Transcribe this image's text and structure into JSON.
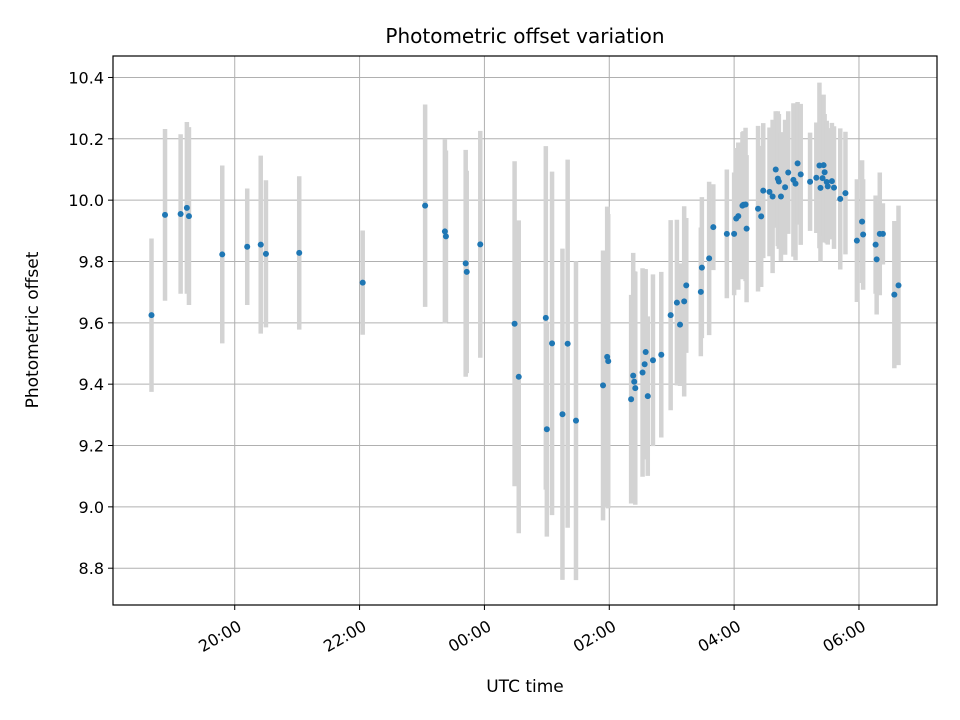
{
  "chart_data": {
    "type": "scatter",
    "title": "Photometric offset variation",
    "xlabel": "UTC time",
    "ylabel": "Photometric offset",
    "x_ticks": [
      "20:00",
      "22:00",
      "00:00",
      "02:00",
      "04:00",
      "06:00"
    ],
    "y_ticks": [
      "8.8",
      "9.0",
      "9.2",
      "9.4",
      "9.6",
      "9.8",
      "10.0",
      "10.2",
      "10.4"
    ],
    "x_range": [
      "18:03",
      "07:15"
    ],
    "ylim": [
      8.68,
      10.47
    ],
    "grid": true,
    "legend": "none",
    "marker_color": "#1f77b4",
    "errorbar_color": "#d3d3d3",
    "series": [
      {
        "x": [
          "18:40",
          "18:53",
          "19:08",
          "19:14",
          "19:16",
          "19:48",
          "20:12",
          "20:25",
          "20:30",
          "21:02",
          "22:03",
          "23:03",
          "23:22",
          "23:23",
          "23:42",
          "23:43",
          "23:56",
          "00:29",
          "00:33",
          "00:59",
          "01:00",
          "01:05",
          "01:15",
          "01:20",
          "01:28",
          "01:54",
          "01:58",
          "01:59",
          "02:21",
          "02:23",
          "02:24",
          "02:25",
          "02:32",
          "02:34",
          "02:35",
          "02:37",
          "02:42",
          "02:50",
          "02:59",
          "03:05",
          "03:08",
          "03:12",
          "03:14",
          "03:28",
          "03:29",
          "03:36",
          "03:40",
          "03:53",
          "04:00",
          "04:02",
          "04:04",
          "04:08",
          "04:09",
          "04:11",
          "04:12",
          "04:23",
          "04:26",
          "04:28",
          "04:34",
          "04:37",
          "04:40",
          "04:42",
          "04:43",
          "04:45",
          "04:49",
          "04:52",
          "04:57",
          "04:59",
          "05:01",
          "05:04",
          "05:13",
          "05:19",
          "05:22",
          "05:23",
          "05:25",
          "05:26",
          "05:27",
          "05:29",
          "05:30",
          "05:34",
          "05:36",
          "05:42",
          "05:47",
          "05:58",
          "06:03",
          "06:04",
          "06:16",
          "06:17",
          "06:20",
          "06:23",
          "06:34",
          "06:38"
        ],
        "y": [
          9.625,
          9.952,
          9.955,
          9.975,
          9.948,
          9.823,
          9.848,
          9.855,
          9.825,
          9.828,
          9.731,
          9.982,
          9.898,
          9.882,
          9.794,
          9.766,
          9.856,
          9.597,
          9.424,
          9.616,
          9.253,
          9.533,
          9.302,
          9.532,
          9.281,
          9.396,
          9.489,
          9.475,
          9.351,
          9.428,
          9.408,
          9.387,
          9.438,
          9.465,
          9.505,
          9.361,
          9.478,
          9.496,
          9.625,
          9.666,
          9.594,
          9.67,
          9.722,
          9.701,
          9.78,
          9.81,
          9.912,
          9.89,
          9.89,
          9.94,
          9.948,
          9.982,
          9.985,
          9.986,
          9.907,
          9.972,
          9.947,
          10.031,
          10.027,
          10.012,
          10.1,
          10.07,
          10.061,
          10.012,
          10.042,
          10.09,
          10.066,
          10.054,
          10.12,
          10.084,
          10.06,
          10.073,
          10.113,
          10.04,
          10.072,
          10.114,
          10.091,
          10.059,
          10.045,
          10.062,
          10.041,
          10.004,
          10.023,
          9.868,
          9.93,
          9.888,
          9.855,
          9.807,
          9.89,
          9.89,
          9.692,
          9.722
        ],
        "yerr": [
          0.25,
          0.28,
          0.26,
          0.28,
          0.29,
          0.29,
          0.19,
          0.29,
          0.24,
          0.25,
          0.17,
          0.33,
          0.3,
          0.28,
          0.37,
          0.33,
          0.37,
          0.53,
          0.51,
          0.56,
          0.35,
          0.56,
          0.54,
          0.6,
          0.52,
          0.44,
          0.49,
          0.48,
          0.34,
          0.4,
          0.36,
          0.38,
          0.34,
          0.31,
          0.27,
          0.26,
          0.28,
          0.27,
          0.31,
          0.27,
          0.2,
          0.31,
          0.22,
          0.21,
          0.23,
          0.25,
          0.14,
          0.21,
          0.2,
          0.23,
          0.24,
          0.24,
          0.24,
          0.25,
          0.24,
          0.27,
          0.23,
          0.22,
          0.21,
          0.25,
          0.19,
          0.22,
          0.22,
          0.21,
          0.22,
          0.2,
          0.25,
          0.25,
          0.2,
          0.23,
          0.16,
          0.18,
          0.27,
          0.24,
          0.21,
          0.23,
          0.19,
          0.2,
          0.19,
          0.19,
          0.2,
          0.23,
          0.2,
          0.2,
          0.2,
          0.18,
          0.16,
          0.18,
          0.2,
          0.1,
          0.24,
          0.26
        ]
      }
    ]
  }
}
